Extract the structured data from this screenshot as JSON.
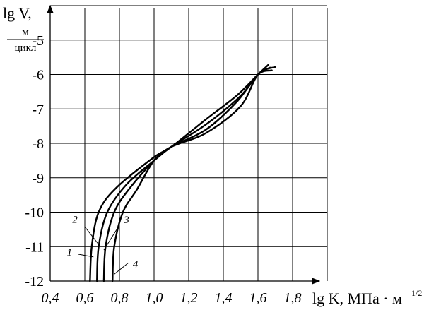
{
  "chart_data": {
    "type": "line",
    "xlabel": "lg K, МПа · м",
    "xlabel_exponent": "1/2",
    "ylabel": "lg V,",
    "ylabel_unit_top": "м",
    "ylabel_unit_bottom": "цикл",
    "xlim": [
      0.4,
      2.0
    ],
    "ylim": [
      -12,
      -4
    ],
    "x_ticks": [
      "0,4",
      "0,6",
      "0,8",
      "1,0",
      "1,2",
      "1,4",
      "1,6",
      "1,8"
    ],
    "y_ticks": [
      "-5",
      "-6",
      "-7",
      "-8",
      "-9",
      "-10",
      "-11",
      "-12"
    ],
    "grid": true,
    "series": [
      {
        "name": "1",
        "points": [
          [
            0.63,
            -12.0
          ],
          [
            0.64,
            -11.0
          ],
          [
            0.68,
            -10.0
          ],
          [
            0.78,
            -9.3
          ],
          [
            1.0,
            -8.4
          ],
          [
            1.1,
            -8.1
          ],
          [
            1.3,
            -7.3
          ],
          [
            1.48,
            -6.6
          ],
          [
            1.6,
            -6.0
          ],
          [
            1.66,
            -5.72
          ]
        ]
      },
      {
        "name": "2",
        "points": [
          [
            0.67,
            -12.0
          ],
          [
            0.68,
            -11.0
          ],
          [
            0.73,
            -10.0
          ],
          [
            0.84,
            -9.2
          ],
          [
            1.0,
            -8.5
          ],
          [
            1.1,
            -8.1
          ],
          [
            1.3,
            -7.45
          ],
          [
            1.5,
            -6.62
          ],
          [
            1.6,
            -6.0
          ],
          [
            1.67,
            -5.8
          ]
        ]
      },
      {
        "name": "3",
        "points": [
          [
            0.71,
            -12.0
          ],
          [
            0.72,
            -11.0
          ],
          [
            0.77,
            -10.0
          ],
          [
            0.86,
            -9.3
          ],
          [
            1.0,
            -8.5
          ],
          [
            1.1,
            -8.1
          ],
          [
            1.3,
            -7.6
          ],
          [
            1.48,
            -6.78
          ],
          [
            1.6,
            -6.0
          ],
          [
            1.68,
            -5.88
          ]
        ]
      },
      {
        "name": "4",
        "points": [
          [
            0.76,
            -12.0
          ],
          [
            0.77,
            -11.0
          ],
          [
            0.82,
            -10.0
          ],
          [
            0.9,
            -9.35
          ],
          [
            1.0,
            -8.5
          ],
          [
            1.1,
            -8.1
          ],
          [
            1.3,
            -7.7
          ],
          [
            1.5,
            -6.92
          ],
          [
            1.6,
            -6.0
          ],
          [
            1.7,
            -5.78
          ]
        ]
      }
    ],
    "curve_labels": [
      {
        "text": "1",
        "anchor": [
          0.65,
          -11.3
        ]
      },
      {
        "text": "2",
        "anchor": [
          0.69,
          -11.0
        ]
      },
      {
        "text": "3",
        "anchor": [
          0.71,
          -11.1
        ]
      },
      {
        "text": "4",
        "anchor": [
          0.77,
          -11.8
        ]
      }
    ]
  }
}
